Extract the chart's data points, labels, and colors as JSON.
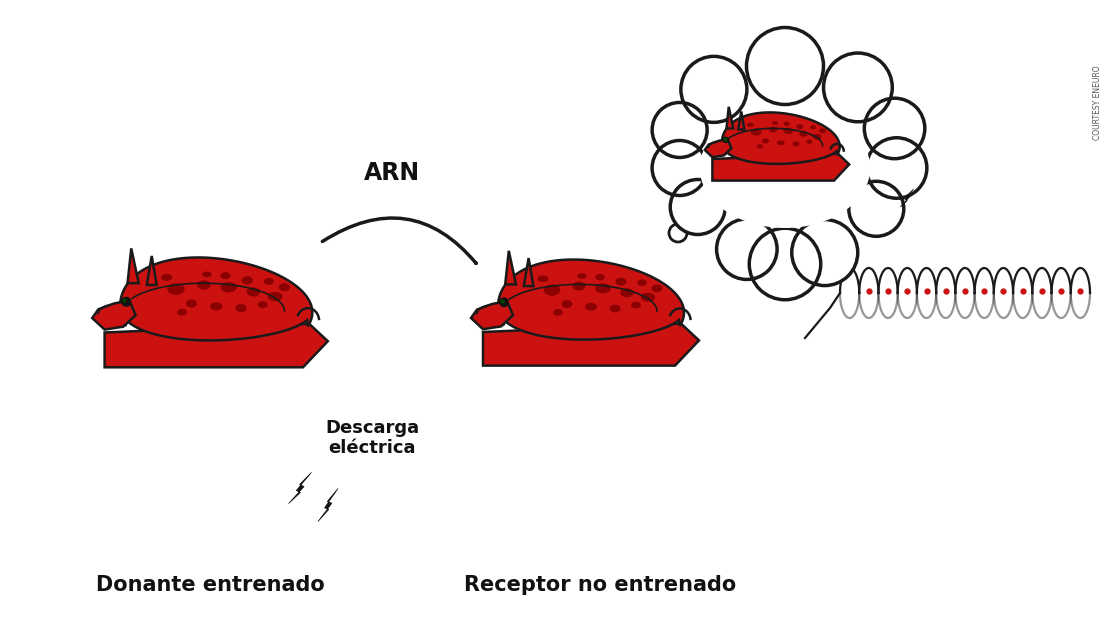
{
  "background_color": "#ffffff",
  "slug_body_color": "#cc1111",
  "slug_dark_color": "#8b0000",
  "slug_outline_color": "#1a1a1a",
  "arrow_color": "#1a1a1a",
  "text_color": "#111111",
  "thought_bubble_outline": "#1a1a1a",
  "coil_color": "#1a1a1a",
  "coil_dot_color": "#cc1111",
  "label_donante": "Donante entrenado",
  "label_receptor": "Receptor no entrenado",
  "label_arn": "ARN",
  "label_descarga": "Descarga\neléctrica",
  "label_courtesy": "COURTESY ENEURO"
}
